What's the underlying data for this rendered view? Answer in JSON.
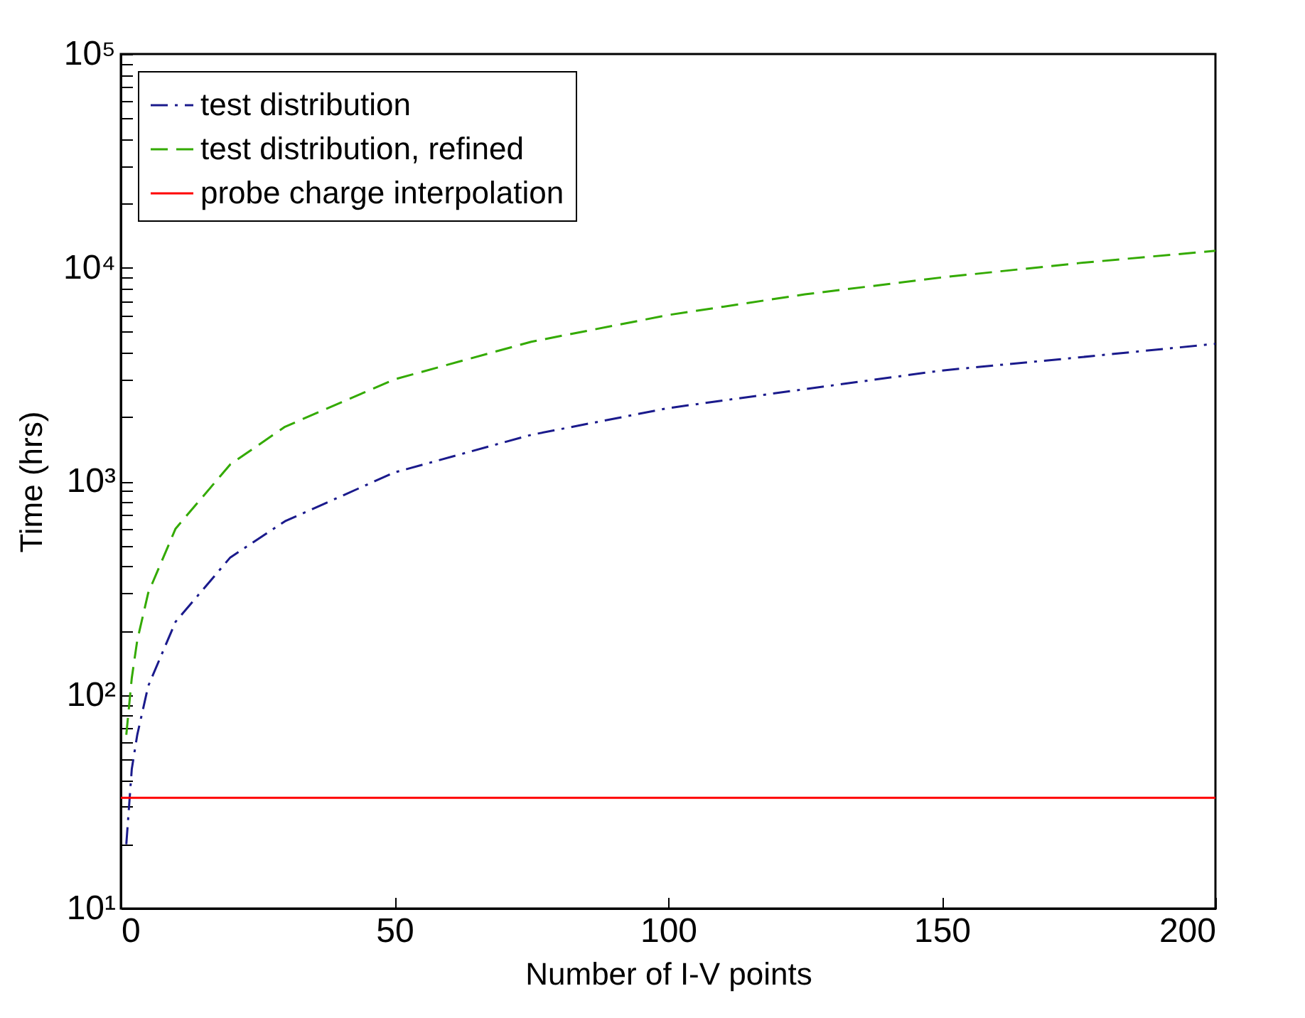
{
  "chart_data": {
    "type": "line",
    "xlabel": "Number of I-V points",
    "ylabel": "Time (hrs)",
    "log": "y",
    "legend": "top left",
    "grid": false,
    "xlim": [
      0,
      200
    ],
    "xticks": [
      0,
      50,
      100,
      150,
      200
    ],
    "ylim": [
      10,
      100000
    ],
    "yticks": [
      {
        "value": 10,
        "label": "10¹"
      },
      {
        "value": 20,
        "label": null
      },
      {
        "value": 30,
        "label": null
      },
      {
        "value": 40,
        "label": null
      },
      {
        "value": 50,
        "label": null
      },
      {
        "value": 60,
        "label": null
      },
      {
        "value": 70,
        "label": null
      },
      {
        "value": 80,
        "label": null
      },
      {
        "value": 90,
        "label": null
      },
      {
        "value": 100,
        "label": "10²"
      },
      {
        "value": 200,
        "label": null
      },
      {
        "value": 300,
        "label": null
      },
      {
        "value": 400,
        "label": null
      },
      {
        "value": 500,
        "label": null
      },
      {
        "value": 600,
        "label": null
      },
      {
        "value": 700,
        "label": null
      },
      {
        "value": 800,
        "label": null
      },
      {
        "value": 900,
        "label": null
      },
      {
        "value": 1000,
        "label": "10³"
      },
      {
        "value": 2000,
        "label": null
      },
      {
        "value": 3000,
        "label": null
      },
      {
        "value": 4000,
        "label": null
      },
      {
        "value": 5000,
        "label": null
      },
      {
        "value": 6000,
        "label": null
      },
      {
        "value": 7000,
        "label": null
      },
      {
        "value": 8000,
        "label": null
      },
      {
        "value": 9000,
        "label": null
      },
      {
        "value": 10000,
        "label": "10⁴"
      },
      {
        "value": 20000,
        "label": null
      },
      {
        "value": 30000,
        "label": null
      },
      {
        "value": 40000,
        "label": null
      },
      {
        "value": 50000,
        "label": null
      },
      {
        "value": 60000,
        "label": null
      },
      {
        "value": 70000,
        "label": null
      },
      {
        "value": 80000,
        "label": null
      },
      {
        "value": 90000,
        "label": null
      },
      {
        "value": 100000,
        "label": "10⁵"
      }
    ],
    "x": [
      1,
      2,
      3,
      5,
      10,
      20,
      30,
      50,
      75,
      100,
      125,
      150,
      175,
      200
    ],
    "series": [
      {
        "name": "test distribution",
        "color": "#1a1a8c",
        "line_style": "dashdot",
        "values": [
          20,
          45,
          65,
          110,
          220,
          440,
          650,
          1100,
          1650,
          2200,
          2700,
          3300,
          3800,
          4400
        ]
      },
      {
        "name": "test distribution, refined",
        "color": "#33aa00",
        "line_style": "dashed",
        "values": [
          65,
          120,
          180,
          300,
          600,
          1200,
          1800,
          3000,
          4500,
          6000,
          7500,
          9000,
          10500,
          12000
        ]
      },
      {
        "name": "probe charge interpolation",
        "color": "#ff0000",
        "line_style": "solid",
        "x": [
          0,
          200
        ],
        "values": [
          33,
          33
        ]
      }
    ]
  }
}
